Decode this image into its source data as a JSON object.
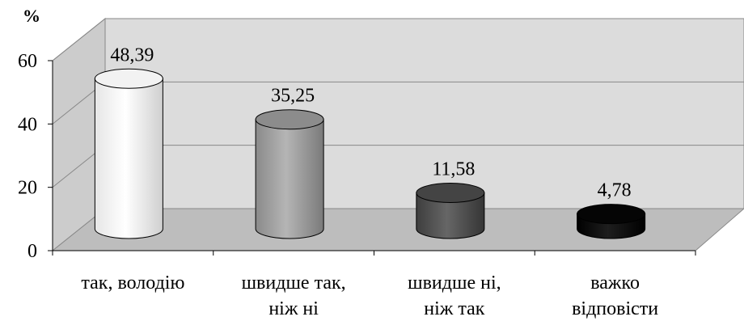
{
  "chart_data": {
    "type": "bar",
    "style": "3d-cylinder",
    "ylabel": "%",
    "ylim": [
      0,
      60
    ],
    "yticks": [
      0,
      20,
      40,
      60
    ],
    "grid": true,
    "categories": [
      [
        "так, володію"
      ],
      [
        "швидше так,",
        "ніж ні"
      ],
      [
        "швидше ні,",
        "ніж так"
      ],
      [
        "важко",
        "відповісти"
      ]
    ],
    "values": [
      48.39,
      35.25,
      11.58,
      4.78
    ],
    "data_labels": [
      "48,39",
      "35,25",
      "11,58",
      "4,78"
    ],
    "colors": {
      "back_wall": "#dcdcdc",
      "floor": "#bdbdbd",
      "bars": [
        "#ffffff",
        "#9e9e9e",
        "#505050",
        "#0a0a0a"
      ]
    }
  }
}
